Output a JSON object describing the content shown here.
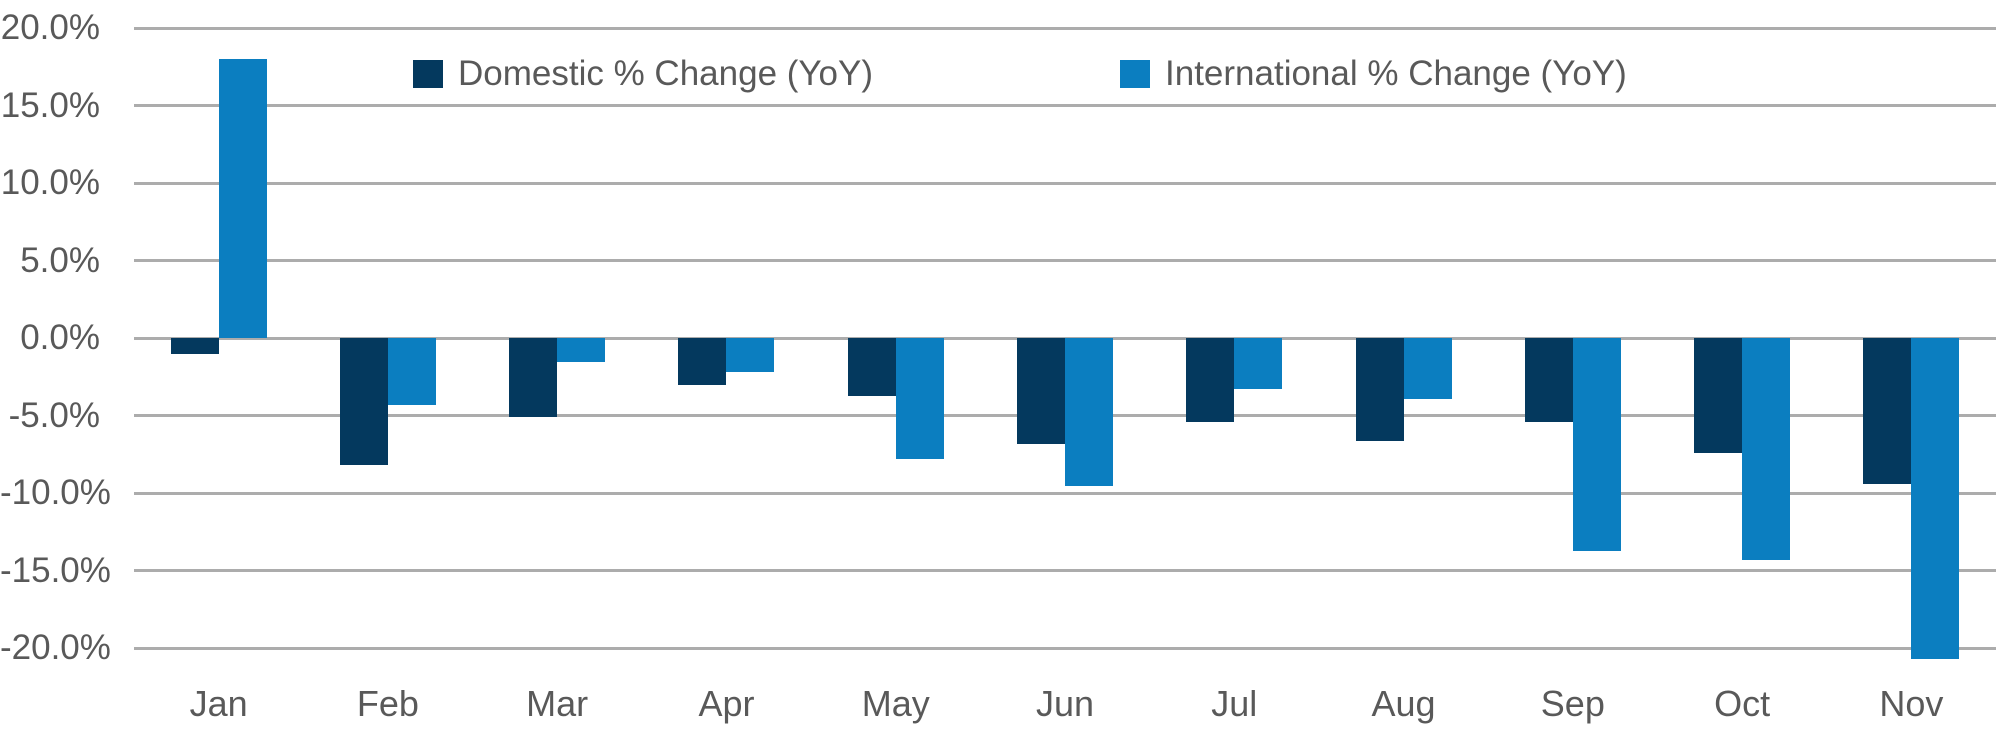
{
  "chart": {
    "background": "#ffffff",
    "text_color": "#595959",
    "gridline_color": "#acacac"
  },
  "chart_data": {
    "type": "bar",
    "title": "",
    "xlabel": "",
    "ylabel": "",
    "categories": [
      "Jan",
      "Feb",
      "Mar",
      "Apr",
      "May",
      "Jun",
      "Jul",
      "Aug",
      "Sep",
      "Oct",
      "Nov"
    ],
    "series": [
      {
        "name": "Domestic % Change (YoY)",
        "color": "#04395e",
        "values": [
          -1.0,
          -8.2,
          -5.1,
          -3.0,
          -3.7,
          -6.8,
          -5.4,
          -6.6,
          -5.4,
          -7.4,
          -9.4
        ]
      },
      {
        "name": "International % Change (YoY)",
        "color": "#0b7ec0",
        "values": [
          18.0,
          -4.3,
          -1.5,
          -2.2,
          -7.8,
          -9.5,
          -3.3,
          -3.9,
          -13.7,
          -14.3,
          -20.7
        ]
      }
    ],
    "y_axis": {
      "tick_labels": [
        "20.0%",
        "15.0%",
        "10.0%",
        "5.0%",
        "0.0%",
        "-5.0%",
        "-10.0%",
        "-15.0%",
        "-20.0%"
      ],
      "tick_values": [
        20,
        15,
        10,
        5,
        0,
        -5,
        -10,
        -15,
        -20
      ],
      "ylim": [
        -21,
        20
      ],
      "format": "percent_one_decimal"
    },
    "grid": true,
    "legend_position": "top-center-inside"
  }
}
